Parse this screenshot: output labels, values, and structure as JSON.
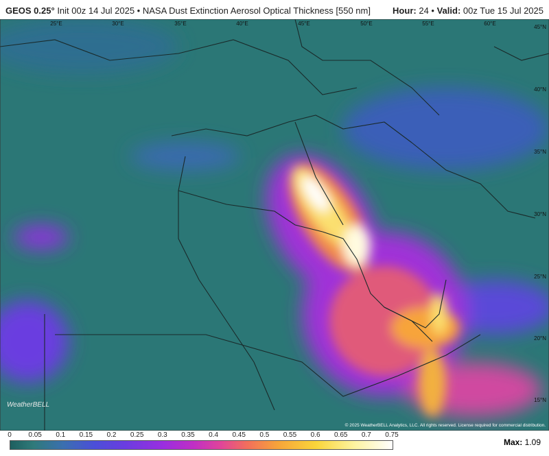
{
  "header": {
    "model": "GEOS 0.25°",
    "init": "Init 00z 14 Jul 2025",
    "product": "NASA Dust Extinction Aerosol Optical Thickness [550 nm]",
    "hour_label": "Hour:",
    "hour": "24",
    "valid_label": "Valid:",
    "valid": "00z Tue 15 Jul 2025"
  },
  "map": {
    "lon_labels": [
      "25°E",
      "30°E",
      "35°E",
      "40°E",
      "45°E",
      "50°E",
      "55°E",
      "60°E"
    ],
    "lat_labels": [
      "45°N",
      "40°N",
      "35°N",
      "30°N",
      "25°N",
      "20°N",
      "15°N"
    ],
    "logo": "WeatherBELL",
    "copyright": "© 2025 WeatherBELL Analytics, LLC. All rights reserved. License required for commercial distribution."
  },
  "colorbar": {
    "ticks": [
      0,
      0.05,
      0.1,
      0.15,
      0.2,
      0.25,
      0.3,
      0.35,
      0.4,
      0.45,
      0.5,
      0.55,
      0.6,
      0.65,
      0.7,
      0.75
    ],
    "max_label": "Max:",
    "max": 1.09
  }
}
